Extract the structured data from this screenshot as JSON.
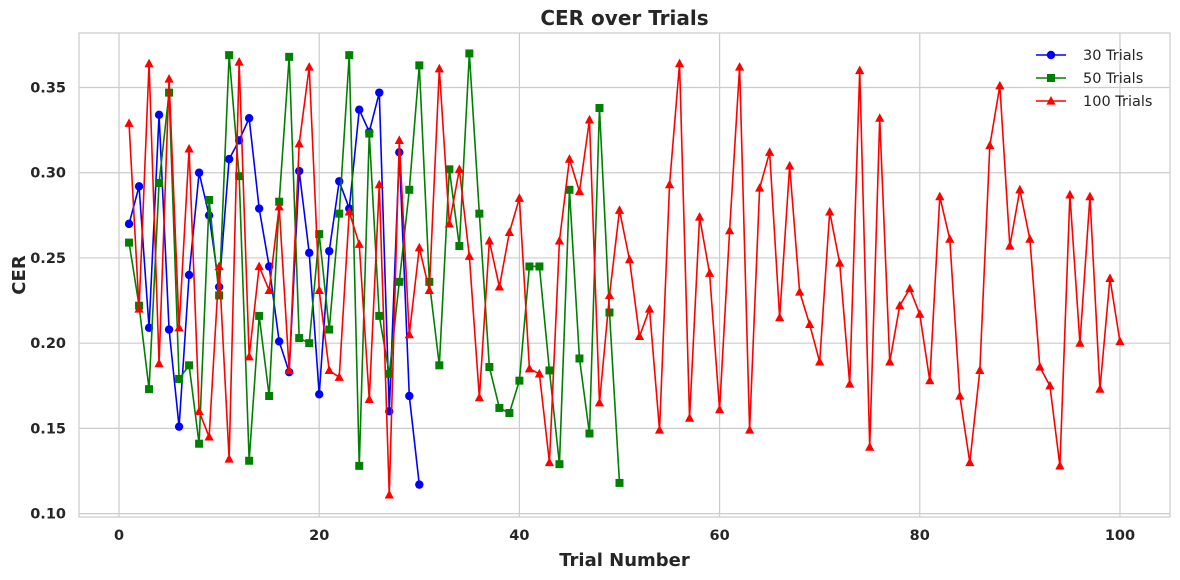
{
  "chart_data": {
    "type": "line",
    "title": "CER over Trials",
    "xlabel": "Trial Number",
    "ylabel": "CER",
    "xlim": [
      -4,
      105
    ],
    "ylim": [
      0.098,
      0.382
    ],
    "xticks": [
      0,
      20,
      40,
      60,
      80,
      100
    ],
    "yticks": [
      0.1,
      0.15,
      0.2,
      0.25,
      0.3,
      0.35
    ],
    "grid": true,
    "legend_position": "top-right",
    "series": [
      {
        "name": "30 Trials",
        "color": "#0000ff",
        "marker": "circle",
        "x": [
          1,
          2,
          3,
          4,
          5,
          6,
          7,
          8,
          9,
          10,
          11,
          12,
          13,
          14,
          15,
          16,
          17,
          18,
          19,
          20,
          21,
          22,
          23,
          24,
          25,
          26,
          27,
          28,
          29,
          30
        ],
        "y": [
          0.27,
          0.292,
          0.209,
          0.334,
          0.208,
          0.151,
          0.24,
          0.3,
          0.275,
          0.233,
          0.308,
          0.319,
          0.332,
          0.279,
          0.245,
          0.201,
          0.183,
          0.301,
          0.253,
          0.17,
          0.254,
          0.295,
          0.279,
          0.337,
          0.324,
          0.347,
          0.16,
          0.312,
          0.169,
          0.117
        ]
      },
      {
        "name": "50 Trials",
        "color": "#008000",
        "marker": "square",
        "x": [
          1,
          2,
          3,
          4,
          5,
          6,
          7,
          8,
          9,
          10,
          11,
          12,
          13,
          14,
          15,
          16,
          17,
          18,
          19,
          20,
          21,
          22,
          23,
          24,
          25,
          26,
          27,
          28,
          29,
          30,
          31,
          32,
          33,
          34,
          35,
          36,
          37,
          38,
          39,
          40,
          41,
          42,
          43,
          44,
          45,
          46,
          47,
          48,
          49,
          50
        ],
        "y": [
          0.259,
          0.222,
          0.173,
          0.294,
          0.347,
          0.179,
          0.187,
          0.141,
          0.284,
          0.228,
          0.369,
          0.298,
          0.131,
          0.216,
          0.169,
          0.283,
          0.368,
          0.203,
          0.2,
          0.264,
          0.208,
          0.276,
          0.369,
          0.128,
          0.323,
          0.216,
          0.182,
          0.236,
          0.29,
          0.363,
          0.236,
          0.187,
          0.302,
          0.257,
          0.37,
          0.276,
          0.186,
          0.162,
          0.159,
          0.178,
          0.245,
          0.245,
          0.184,
          0.129,
          0.29,
          0.191,
          0.147,
          0.338,
          0.218,
          0.118
        ]
      },
      {
        "name": "100 Trials",
        "color": "#ff0000",
        "marker": "triangle",
        "x": [
          1,
          2,
          3,
          4,
          5,
          6,
          7,
          8,
          9,
          10,
          11,
          12,
          13,
          14,
          15,
          16,
          17,
          18,
          19,
          20,
          21,
          22,
          23,
          24,
          25,
          26,
          27,
          28,
          29,
          30,
          31,
          32,
          33,
          34,
          35,
          36,
          37,
          38,
          39,
          40,
          41,
          42,
          43,
          44,
          45,
          46,
          47,
          48,
          49,
          50,
          51,
          52,
          53,
          54,
          55,
          56,
          57,
          58,
          59,
          60,
          61,
          62,
          63,
          64,
          65,
          66,
          67,
          68,
          69,
          70,
          71,
          72,
          73,
          74,
          75,
          76,
          77,
          78,
          79,
          80,
          81,
          82,
          83,
          84,
          85,
          86,
          87,
          88,
          89,
          90,
          91,
          92,
          93,
          94,
          95,
          96,
          97,
          98,
          99,
          100
        ],
        "y": [
          0.329,
          0.22,
          0.364,
          0.188,
          0.355,
          0.209,
          0.314,
          0.16,
          0.145,
          0.245,
          0.132,
          0.365,
          0.192,
          0.245,
          0.231,
          0.28,
          0.184,
          0.317,
          0.362,
          0.231,
          0.184,
          0.18,
          0.277,
          0.258,
          0.167,
          0.293,
          0.111,
          0.319,
          0.205,
          0.256,
          0.231,
          0.361,
          0.27,
          0.302,
          0.251,
          0.168,
          0.26,
          0.233,
          0.265,
          0.285,
          0.185,
          0.182,
          0.13,
          0.26,
          0.308,
          0.289,
          0.331,
          0.165,
          0.228,
          0.278,
          0.249,
          0.204,
          0.22,
          0.149,
          0.293,
          0.364,
          0.156,
          0.274,
          0.241,
          0.161,
          0.266,
          0.362,
          0.149,
          0.291,
          0.312,
          0.215,
          0.304,
          0.23,
          0.211,
          0.189,
          0.277,
          0.247,
          0.176,
          0.36,
          0.139,
          0.332,
          0.189,
          0.222,
          0.232,
          0.217,
          0.178,
          0.286,
          0.261,
          0.169,
          0.13,
          0.184,
          0.316,
          0.351,
          0.257,
          0.29,
          0.261,
          0.186,
          0.175,
          0.128,
          0.287,
          0.2,
          0.286,
          0.173,
          0.238,
          0.201
        ]
      }
    ]
  }
}
